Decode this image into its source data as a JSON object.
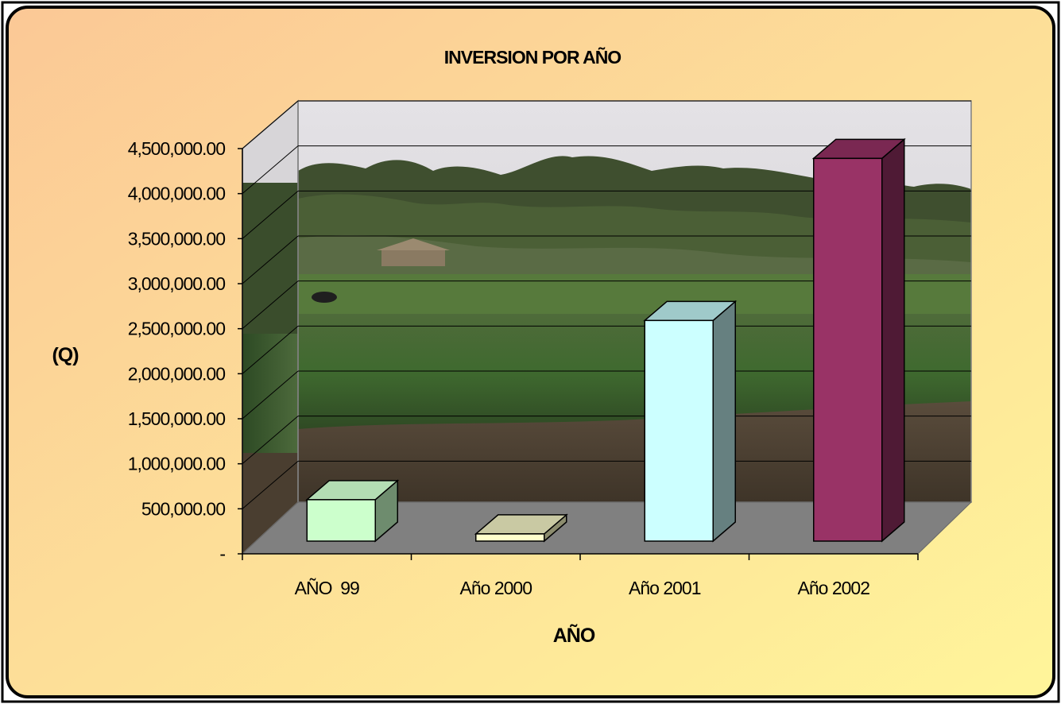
{
  "chart_data": {
    "type": "bar",
    "title": "INVERSION POR AÑO",
    "xlabel": "AÑO",
    "ylabel": "(Q)",
    "categories": [
      "AÑO  99",
      "Año 2000",
      "Año 2001",
      "Año 2002"
    ],
    "values": [
      460000,
      80000,
      2450000,
      4250000
    ],
    "ylim": [
      0,
      4500000
    ],
    "yticks": [
      0,
      500000,
      1000000,
      1500000,
      2000000,
      2500000,
      3000000,
      3500000,
      4000000,
      4500000
    ],
    "ytick_labels": [
      "-",
      "500,000.00",
      "1,000,000.00",
      "1,500,000.00",
      "2,000,000.00",
      "2,500,000.00",
      "3,000,000.00",
      "3,500,000.00",
      "4,000,000.00",
      "4,500,000.00"
    ],
    "grid": true,
    "legend": "none",
    "style": "3d-column",
    "bar_colors": [
      {
        "front": "#ccffcc",
        "side": "#6e8c6e",
        "top": "#b3ddb3"
      },
      {
        "front": "#ffffcc",
        "side": "#8c8c6e",
        "top": "#c9c9a3"
      },
      {
        "front": "#ccffff",
        "side": "#668080",
        "top": "#9fcaca"
      },
      {
        "front": "#993366",
        "side": "#4f1a35",
        "top": "#7a2852"
      }
    ],
    "background_colors": {
      "gradient_start": "#fbc896",
      "gradient_end": "#fff59a",
      "floor": "#808080"
    }
  }
}
